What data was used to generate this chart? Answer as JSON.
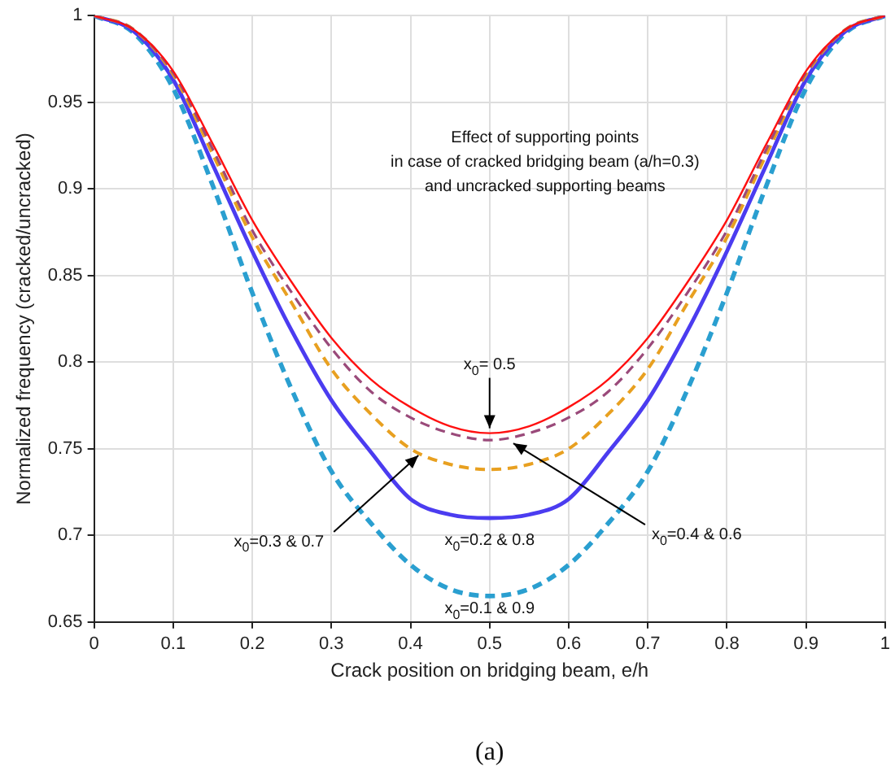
{
  "chart_data": {
    "type": "line",
    "xlabel": "Crack position on bridging beam, e/h",
    "ylabel": "Normalized frequency (cracked/uncracked)",
    "x": [
      0,
      0.05,
      0.1,
      0.15,
      0.2,
      0.25,
      0.3,
      0.35,
      0.4,
      0.45,
      0.5,
      0.55,
      0.6,
      0.65,
      0.7,
      0.75,
      0.8,
      0.85,
      0.9,
      0.95,
      1
    ],
    "series": [
      {
        "color": "#ff1010",
        "line_style": "solid",
        "values": [
          1,
          0.992,
          0.968,
          0.926,
          0.882,
          0.846,
          0.814,
          0.79,
          0.774,
          0.763,
          0.759,
          0.763,
          0.774,
          0.79,
          0.814,
          0.846,
          0.882,
          0.926,
          0.968,
          0.992,
          1
        ]
      },
      {
        "color": "#9a4a7a",
        "line_style": "dashed",
        "values": [
          1,
          0.992,
          0.967,
          0.923,
          0.876,
          0.84,
          0.808,
          0.783,
          0.768,
          0.759,
          0.755,
          0.759,
          0.768,
          0.783,
          0.808,
          0.84,
          0.876,
          0.923,
          0.967,
          0.992,
          1
        ]
      },
      {
        "color": "#e8a020",
        "line_style": "dashed",
        "values": [
          1,
          0.992,
          0.966,
          0.92,
          0.872,
          0.834,
          0.796,
          0.77,
          0.75,
          0.741,
          0.738,
          0.741,
          0.75,
          0.77,
          0.796,
          0.834,
          0.872,
          0.92,
          0.966,
          0.992,
          1
        ]
      },
      {
        "color": "#4b3cf0",
        "line_style": "solid",
        "values": [
          1,
          0.991,
          0.963,
          0.914,
          0.864,
          0.818,
          0.778,
          0.748,
          0.721,
          0.712,
          0.71,
          0.712,
          0.721,
          0.748,
          0.778,
          0.818,
          0.864,
          0.914,
          0.963,
          0.991,
          1
        ]
      },
      {
        "color": "#2a9fd0",
        "line_style": "dashed",
        "values": [
          1,
          0.99,
          0.958,
          0.902,
          0.84,
          0.784,
          0.737,
          0.707,
          0.683,
          0.669,
          0.665,
          0.669,
          0.683,
          0.707,
          0.737,
          0.784,
          0.84,
          0.902,
          0.958,
          0.99,
          1
        ]
      }
    ],
    "xlim": [
      0,
      1
    ],
    "xticks": [
      0,
      0.1,
      0.2,
      0.3,
      0.4,
      0.5,
      0.6,
      0.7,
      0.8,
      0.9,
      1
    ],
    "ylim": [
      0.65,
      1
    ],
    "yticks": [
      0.65,
      0.7,
      0.75,
      0.8,
      0.85,
      0.9,
      0.95,
      1
    ],
    "grid": true,
    "legend": false,
    "marker": "none",
    "annotations": [
      {
        "text": "x$_{0}$= 0.5",
        "x": 0.5,
        "y": 0.759
      },
      {
        "text": "x$_{0}$=0.4 & 0.6",
        "x": 0.53,
        "y": 0.755
      },
      {
        "text": "x$_{0}$=0.3 & 0.7",
        "x": 0.41,
        "y": 0.748
      },
      {
        "text": "x$_{0}$=0.2 & 0.8",
        "x": 0.5,
        "y": 0.71
      },
      {
        "text": "x$_{0}$=0.1 & 0.9",
        "x": 0.5,
        "y": 0.665
      },
      "Effect of supporting points\nin case of cracked bridging beam (a/h=0.3)\nand uncracked supporting beams",
      "(a)"
    ]
  }
}
